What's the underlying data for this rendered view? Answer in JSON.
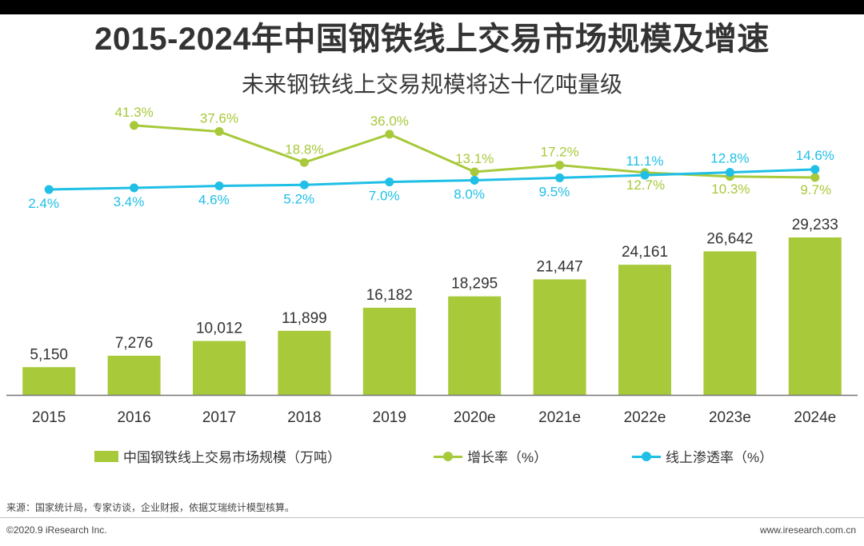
{
  "title": "2015-2024年中国钢铁线上交易市场规模及增速",
  "subtitle": "未来钢铁线上交易规模将达十亿吨量级",
  "colors": {
    "bar": "#a7c93a",
    "growth": "#a7c93a",
    "penetration": "#1fbfe6",
    "axis": "#777777"
  },
  "chart_data": {
    "type": "bar+line",
    "categories": [
      "2015",
      "2016",
      "2017",
      "2018",
      "2019",
      "2020e",
      "2021e",
      "2022e",
      "2023e",
      "2024e"
    ],
    "series": [
      {
        "name": "中国钢铁线上交易市场规模（万吨）",
        "type": "bar",
        "values": [
          5150,
          7276,
          10012,
          11899,
          16182,
          18295,
          21447,
          24161,
          26642,
          29233
        ],
        "labels": [
          "5,150",
          "7,276",
          "10,012",
          "11,899",
          "16,182",
          "18,295",
          "21,447",
          "24,161",
          "26,642",
          "29,233"
        ]
      },
      {
        "name": "增长率（%）",
        "type": "line",
        "values": [
          null,
          41.3,
          37.6,
          18.8,
          36.0,
          13.1,
          17.2,
          12.7,
          10.3,
          9.7
        ],
        "labels": [
          "",
          "41.3%",
          "37.6%",
          "18.8%",
          "36.0%",
          "13.1%",
          "17.2%",
          "12.7%",
          "10.3%",
          "9.7%"
        ]
      },
      {
        "name": "线上渗透率（%）",
        "type": "line",
        "values": [
          2.4,
          3.4,
          4.6,
          5.2,
          7.0,
          8.0,
          9.5,
          11.1,
          12.8,
          14.6
        ],
        "labels": [
          "2.4%",
          "3.4%",
          "4.6%",
          "5.2%",
          "7.0%",
          "8.0%",
          "9.5%",
          "11.1%",
          "12.8%",
          "14.6%"
        ]
      }
    ],
    "xlabel": "",
    "ylabel": "",
    "ylim": [
      0,
      30000
    ],
    "grid": false,
    "legend": "bottom"
  },
  "legend": {
    "bar": "中国钢铁线上交易市场规模（万吨）",
    "growth": "增长率（%）",
    "penetration": "线上渗透率（%）"
  },
  "source": "来源：国家统计局，专家访谈，企业财报，依据艾瑞统计模型核算。",
  "footer": {
    "copyright": "©2020.9 iResearch Inc.",
    "website": "www.iresearch.com.cn"
  }
}
